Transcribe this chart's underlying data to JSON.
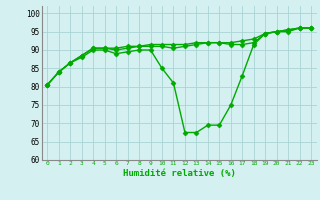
{
  "xlabel": "Humidité relative (%)",
  "background_color": "#d4f0f0",
  "grid_color": "#aad4d4",
  "line_color": "#00aa00",
  "marker": "D",
  "markersize": 2.5,
  "linewidth": 1.0,
  "xlim": [
    -0.5,
    23.5
  ],
  "ylim": [
    60,
    102
  ],
  "yticks": [
    60,
    65,
    70,
    75,
    80,
    85,
    90,
    95,
    100
  ],
  "xticks": [
    0,
    1,
    2,
    3,
    4,
    5,
    6,
    7,
    8,
    9,
    10,
    11,
    12,
    13,
    14,
    15,
    16,
    17,
    18,
    19,
    20,
    21,
    22,
    23
  ],
  "series": [
    [
      80.5,
      84.0,
      86.5,
      88.0,
      90.0,
      90.0,
      89.0,
      89.5,
      90.0,
      90.0,
      85.0,
      81.0,
      67.5,
      67.5,
      69.5,
      69.5,
      75.0,
      83.0,
      91.5,
      94.5,
      95.0,
      95.0,
      96.0,
      96.0
    ],
    [
      80.5,
      84.0,
      86.5,
      88.5,
      90.5,
      90.5,
      90.0,
      90.5,
      91.0,
      91.0,
      91.0,
      90.5,
      91.0,
      91.5,
      92.0,
      92.0,
      91.5,
      91.5,
      92.0,
      94.5,
      95.0,
      95.5,
      96.0,
      96.0
    ],
    [
      80.5,
      84.0,
      86.5,
      88.5,
      90.5,
      90.5,
      90.5,
      91.0,
      91.0,
      91.5,
      91.5,
      91.5,
      91.5,
      92.0,
      92.0,
      92.0,
      92.0,
      92.5,
      93.0,
      94.5,
      95.0,
      95.5,
      96.0,
      96.0
    ]
  ]
}
